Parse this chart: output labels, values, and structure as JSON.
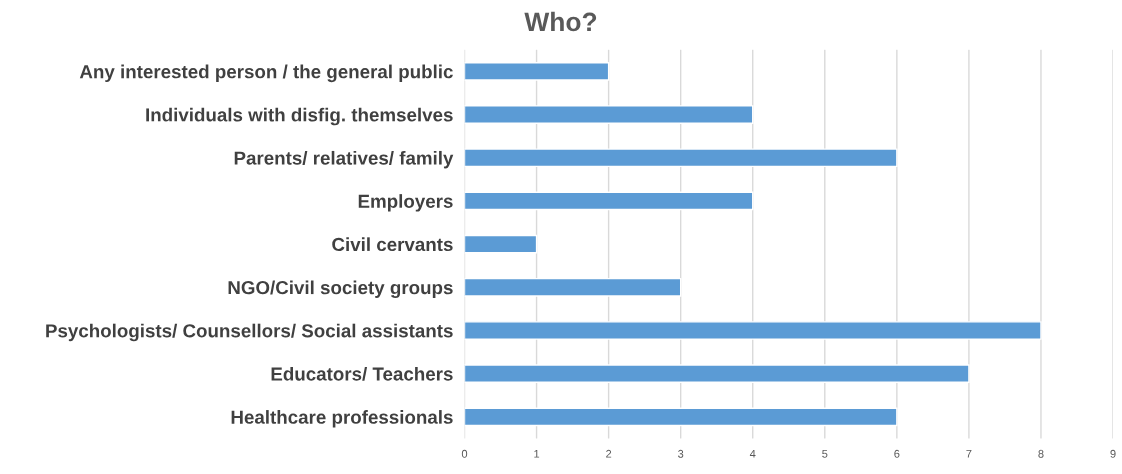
{
  "chart_data": {
    "type": "bar",
    "orientation": "horizontal",
    "title": "Who?",
    "categories": [
      "Any interested person / the general public",
      "Individuals with disfig. themselves",
      "Parents/ relatives/ family",
      "Employers",
      "Civil cervants",
      "NGO/Civil society groups",
      "Psychologists/ Counsellors/ Social assistants",
      "Educators/ Teachers",
      "Healthcare professionals"
    ],
    "values": [
      2,
      4,
      6,
      4,
      1,
      3,
      8,
      7,
      6
    ],
    "color": "#5b9bd5",
    "xlim": [
      0,
      9
    ],
    "xticks": [
      0,
      1,
      2,
      3,
      4,
      5,
      6,
      7,
      8,
      9
    ],
    "grid": "x"
  }
}
